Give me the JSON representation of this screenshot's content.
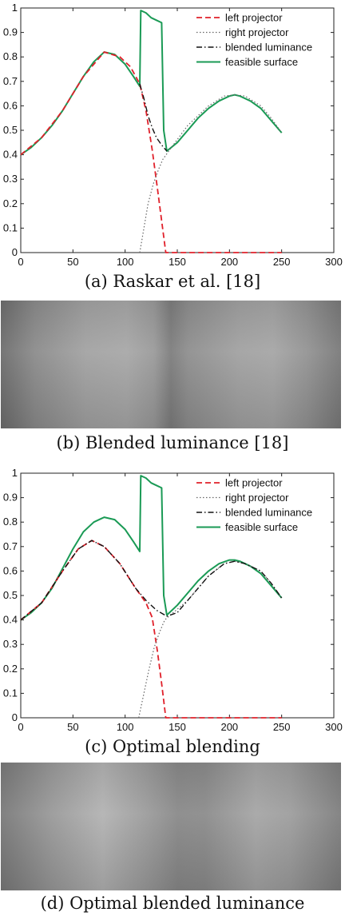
{
  "captions": {
    "a": "(a) Raskar et al. [18]",
    "b": "(b) Blended luminance [18]",
    "c": "(c) Optimal blending",
    "d": "(d) Optimal blended luminance"
  },
  "chart_data": [
    {
      "type": "line",
      "title": "",
      "xlabel": "",
      "ylabel": "",
      "xlim": [
        0,
        300
      ],
      "ylim": [
        0,
        1
      ],
      "xticks": [
        0,
        50,
        100,
        150,
        200,
        250,
        300
      ],
      "yticks": [
        0,
        0.1,
        0.2,
        0.3,
        0.4,
        0.5,
        0.6,
        0.7,
        0.8,
        0.9,
        1
      ],
      "grid": false,
      "legend_position": "top-right",
      "series": [
        {
          "name": "left projector",
          "color": "#e0202a",
          "style": "dashed",
          "points": [
            [
              0,
              0.4
            ],
            [
              20,
              0.47
            ],
            [
              40,
              0.58
            ],
            [
              60,
              0.72
            ],
            [
              80,
              0.82
            ],
            [
              95,
              0.8
            ],
            [
              105,
              0.76
            ],
            [
              114,
              0.69
            ],
            [
              120,
              0.58
            ],
            [
              126,
              0.42
            ],
            [
              131,
              0.26
            ],
            [
              135,
              0.13
            ],
            [
              139,
              0.0
            ],
            [
              150,
              0.0
            ],
            [
              200,
              0.0
            ],
            [
              250,
              0.0
            ]
          ]
        },
        {
          "name": "right projector",
          "color": "#666666",
          "style": "dotted",
          "points": [
            [
              114,
              0.0
            ],
            [
              118,
              0.1
            ],
            [
              122,
              0.2
            ],
            [
              127,
              0.28
            ],
            [
              132,
              0.34
            ],
            [
              136,
              0.38
            ],
            [
              141,
              0.41
            ],
            [
              160,
              0.52
            ],
            [
              180,
              0.6
            ],
            [
              195,
              0.64
            ],
            [
              205,
              0.645
            ],
            [
              215,
              0.64
            ],
            [
              230,
              0.6
            ],
            [
              240,
              0.55
            ],
            [
              250,
              0.49
            ]
          ]
        },
        {
          "name": "blended luminance",
          "color": "#111111",
          "style": "dashdot",
          "points": [
            [
              114,
              0.69
            ],
            [
              118,
              0.63
            ],
            [
              122,
              0.56
            ],
            [
              126,
              0.51
            ],
            [
              130,
              0.47
            ],
            [
              135,
              0.44
            ],
            [
              140,
              0.415
            ]
          ]
        },
        {
          "name": "feasible surface",
          "color": "#1a9a55",
          "style": "solid",
          "points": [
            [
              0,
              0.4
            ],
            [
              10,
              0.43
            ],
            [
              20,
              0.47
            ],
            [
              30,
              0.52
            ],
            [
              40,
              0.58
            ],
            [
              50,
              0.65
            ],
            [
              60,
              0.72
            ],
            [
              70,
              0.78
            ],
            [
              80,
              0.82
            ],
            [
              90,
              0.81
            ],
            [
              100,
              0.77
            ],
            [
              108,
              0.72
            ],
            [
              114,
              0.68
            ],
            [
              115,
              0.99
            ],
            [
              120,
              0.98
            ],
            [
              125,
              0.96
            ],
            [
              130,
              0.95
            ],
            [
              135,
              0.94
            ],
            [
              137,
              0.5
            ],
            [
              140,
              0.415
            ],
            [
              150,
              0.45
            ],
            [
              160,
              0.5
            ],
            [
              170,
              0.55
            ],
            [
              180,
              0.59
            ],
            [
              190,
              0.62
            ],
            [
              200,
              0.64
            ],
            [
              205,
              0.645
            ],
            [
              210,
              0.64
            ],
            [
              220,
              0.62
            ],
            [
              230,
              0.59
            ],
            [
              240,
              0.54
            ],
            [
              250,
              0.49
            ]
          ]
        }
      ]
    },
    {
      "type": "line",
      "title": "",
      "xlabel": "",
      "ylabel": "",
      "xlim": [
        0,
        300
      ],
      "ylim": [
        0,
        1
      ],
      "xticks": [
        0,
        50,
        100,
        150,
        200,
        250,
        300
      ],
      "yticks": [
        0,
        0.1,
        0.2,
        0.3,
        0.4,
        0.5,
        0.6,
        0.7,
        0.8,
        0.9,
        1
      ],
      "grid": false,
      "legend_position": "top-right",
      "series": [
        {
          "name": "left projector",
          "color": "#e0202a",
          "style": "dashed",
          "points": [
            [
              0,
              0.4
            ],
            [
              20,
              0.47
            ],
            [
              40,
              0.6
            ],
            [
              55,
              0.69
            ],
            [
              68,
              0.725
            ],
            [
              80,
              0.7
            ],
            [
              95,
              0.63
            ],
            [
              110,
              0.53
            ],
            [
              120,
              0.47
            ],
            [
              126,
              0.41
            ],
            [
              131,
              0.27
            ],
            [
              135,
              0.14
            ],
            [
              139,
              0.0
            ],
            [
              150,
              0.0
            ],
            [
              200,
              0.0
            ],
            [
              250,
              0.0
            ]
          ]
        },
        {
          "name": "right projector",
          "color": "#666666",
          "style": "dotted",
          "points": [
            [
              113,
              0.0
            ],
            [
              118,
              0.1
            ],
            [
              123,
              0.2
            ],
            [
              128,
              0.29
            ],
            [
              133,
              0.35
            ],
            [
              138,
              0.4
            ],
            [
              142,
              0.415
            ],
            [
              160,
              0.48
            ],
            [
              180,
              0.58
            ],
            [
              195,
              0.63
            ],
            [
              205,
              0.64
            ],
            [
              215,
              0.63
            ],
            [
              230,
              0.6
            ],
            [
              240,
              0.55
            ],
            [
              250,
              0.49
            ]
          ]
        },
        {
          "name": "blended luminance",
          "color": "#111111",
          "style": "dashdot",
          "points": [
            [
              0,
              0.4
            ],
            [
              20,
              0.47
            ],
            [
              40,
              0.6
            ],
            [
              55,
              0.69
            ],
            [
              68,
              0.725
            ],
            [
              80,
              0.7
            ],
            [
              95,
              0.63
            ],
            [
              110,
              0.53
            ],
            [
              120,
              0.48
            ],
            [
              130,
              0.44
            ],
            [
              140,
              0.415
            ],
            [
              150,
              0.43
            ],
            [
              160,
              0.48
            ],
            [
              180,
              0.58
            ],
            [
              195,
              0.63
            ],
            [
              205,
              0.64
            ],
            [
              215,
              0.63
            ],
            [
              230,
              0.6
            ],
            [
              240,
              0.55
            ],
            [
              250,
              0.49
            ]
          ]
        },
        {
          "name": "feasible surface",
          "color": "#1a9a55",
          "style": "solid",
          "points": [
            [
              0,
              0.4
            ],
            [
              10,
              0.43
            ],
            [
              20,
              0.47
            ],
            [
              30,
              0.53
            ],
            [
              40,
              0.61
            ],
            [
              50,
              0.69
            ],
            [
              60,
              0.76
            ],
            [
              70,
              0.8
            ],
            [
              80,
              0.82
            ],
            [
              90,
              0.81
            ],
            [
              100,
              0.77
            ],
            [
              108,
              0.72
            ],
            [
              114,
              0.68
            ],
            [
              115,
              0.99
            ],
            [
              120,
              0.98
            ],
            [
              125,
              0.96
            ],
            [
              130,
              0.95
            ],
            [
              135,
              0.94
            ],
            [
              137,
              0.5
            ],
            [
              140,
              0.42
            ],
            [
              150,
              0.46
            ],
            [
              160,
              0.51
            ],
            [
              170,
              0.56
            ],
            [
              180,
              0.6
            ],
            [
              190,
              0.63
            ],
            [
              200,
              0.645
            ],
            [
              205,
              0.645
            ],
            [
              210,
              0.64
            ],
            [
              220,
              0.62
            ],
            [
              230,
              0.59
            ],
            [
              240,
              0.54
            ],
            [
              250,
              0.49
            ]
          ]
        }
      ]
    }
  ],
  "luminance_strips": {
    "b": {
      "stops": [
        [
          "#6e6e6e",
          0
        ],
        [
          "#8c8c8c",
          10
        ],
        [
          "#a3a3a3",
          25
        ],
        [
          "#a8a8a8",
          37
        ],
        [
          "#9b9b9b",
          45
        ],
        [
          "#7e7e7e",
          50
        ],
        [
          "#8f8f8f",
          55
        ],
        [
          "#a2a2a2",
          70
        ],
        [
          "#a6a6a6",
          80
        ],
        [
          "#949494",
          90
        ],
        [
          "#7a7a7a",
          100
        ]
      ]
    },
    "d": {
      "stops": [
        [
          "#7a7a7a",
          0
        ],
        [
          "#9a9a9a",
          15
        ],
        [
          "#b3b3b3",
          30
        ],
        [
          "#9e9e9e",
          42
        ],
        [
          "#8a8a8a",
          52
        ],
        [
          "#8c8c8c",
          60
        ],
        [
          "#a6a6a6",
          75
        ],
        [
          "#9e9e9e",
          85
        ],
        [
          "#7f7f7f",
          100
        ]
      ]
    }
  }
}
